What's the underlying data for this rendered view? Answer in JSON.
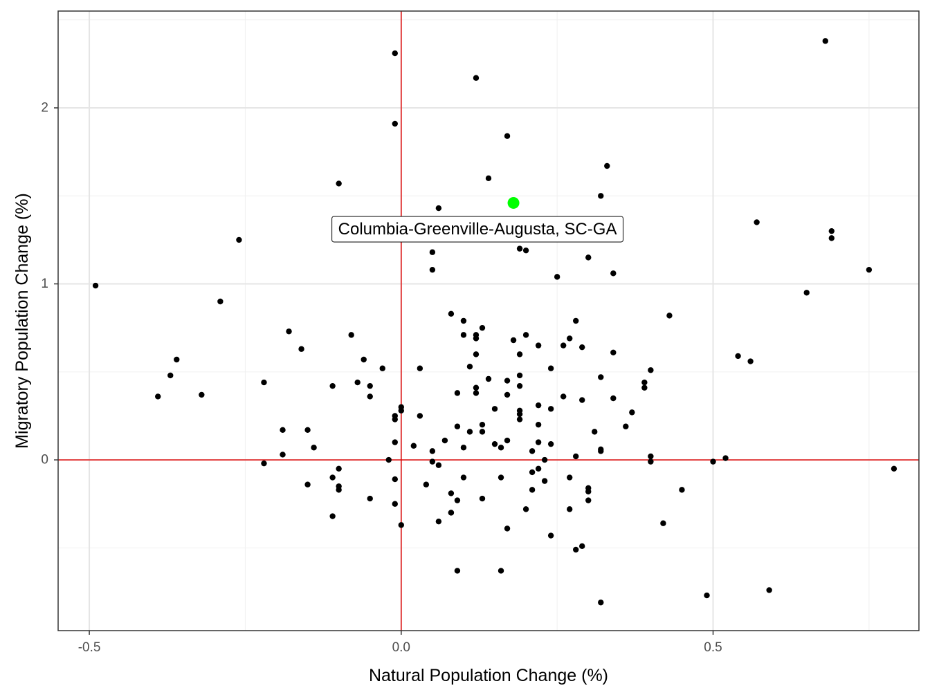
{
  "chart_data": {
    "type": "scatter",
    "xlabel": "Natural Population Change (%)",
    "ylabel": "Migratory Population Change (%)",
    "xlim": [
      -0.55,
      0.83
    ],
    "ylim": [
      -0.97,
      2.55
    ],
    "x_ticks": [
      -0.5,
      0.0,
      0.5
    ],
    "x_tick_labels": [
      "-0.5",
      "0.0",
      "0.5"
    ],
    "y_ticks": [
      0,
      1,
      2
    ],
    "y_tick_labels": [
      "0",
      "1",
      "2"
    ],
    "grid": true,
    "reference_lines": {
      "x": 0,
      "y": 0,
      "color": "#e00000"
    },
    "point_color": "#000000",
    "highlight": {
      "label": "Columbia-Greenville-Augusta, SC-GA",
      "x": 0.18,
      "y": 1.46,
      "color": "#00ff00"
    },
    "points": [
      [
        0.68,
        2.38
      ],
      [
        -0.01,
        2.31
      ],
      [
        0.12,
        2.17
      ],
      [
        -0.01,
        1.91
      ],
      [
        0.17,
        1.84
      ],
      [
        0.33,
        1.67
      ],
      [
        0.14,
        1.6
      ],
      [
        -0.1,
        1.57
      ],
      [
        0.32,
        1.5
      ],
      [
        0.06,
        1.43
      ],
      [
        0.57,
        1.35
      ],
      [
        0.69,
        1.3
      ],
      [
        -0.26,
        1.25
      ],
      [
        0.69,
        1.26
      ],
      [
        0.05,
        1.18
      ],
      [
        0.19,
        1.2
      ],
      [
        0.2,
        1.19
      ],
      [
        0.3,
        1.15
      ],
      [
        0.05,
        1.08
      ],
      [
        0.75,
        1.08
      ],
      [
        0.34,
        1.06
      ],
      [
        0.25,
        1.04
      ],
      [
        -0.49,
        0.99
      ],
      [
        0.65,
        0.95
      ],
      [
        -0.29,
        0.9
      ],
      [
        0.08,
        0.83
      ],
      [
        0.43,
        0.82
      ],
      [
        0.28,
        0.79
      ],
      [
        0.1,
        0.79
      ],
      [
        0.13,
        0.75
      ],
      [
        -0.18,
        0.73
      ],
      [
        0.12,
        0.71
      ],
      [
        0.1,
        0.71
      ],
      [
        -0.08,
        0.71
      ],
      [
        0.2,
        0.71
      ],
      [
        0.12,
        0.69
      ],
      [
        0.27,
        0.69
      ],
      [
        0.18,
        0.68
      ],
      [
        0.26,
        0.65
      ],
      [
        0.22,
        0.65
      ],
      [
        0.29,
        0.64
      ],
      [
        -0.16,
        0.63
      ],
      [
        0.34,
        0.61
      ],
      [
        0.12,
        0.6
      ],
      [
        0.19,
        0.6
      ],
      [
        0.54,
        0.59
      ],
      [
        -0.36,
        0.57
      ],
      [
        -0.06,
        0.57
      ],
      [
        0.56,
        0.56
      ],
      [
        0.11,
        0.53
      ],
      [
        -0.03,
        0.52
      ],
      [
        0.03,
        0.52
      ],
      [
        0.24,
        0.52
      ],
      [
        0.4,
        0.51
      ],
      [
        -0.37,
        0.48
      ],
      [
        0.19,
        0.48
      ],
      [
        0.32,
        0.47
      ],
      [
        0.14,
        0.46
      ],
      [
        0.17,
        0.45
      ],
      [
        -0.22,
        0.44
      ],
      [
        -0.07,
        0.44
      ],
      [
        0.39,
        0.44
      ],
      [
        -0.11,
        0.42
      ],
      [
        -0.05,
        0.42
      ],
      [
        0.19,
        0.42
      ],
      [
        0.12,
        0.41
      ],
      [
        0.39,
        0.41
      ],
      [
        0.09,
        0.38
      ],
      [
        0.12,
        0.38
      ],
      [
        -0.32,
        0.37
      ],
      [
        0.17,
        0.37
      ],
      [
        -0.39,
        0.36
      ],
      [
        -0.05,
        0.36
      ],
      [
        0.26,
        0.36
      ],
      [
        0.34,
        0.35
      ],
      [
        0.29,
        0.34
      ],
      [
        0.22,
        0.31
      ],
      [
        0.0,
        0.3
      ],
      [
        0.15,
        0.29
      ],
      [
        0.24,
        0.29
      ],
      [
        0.0,
        0.28
      ],
      [
        0.19,
        0.28
      ],
      [
        0.37,
        0.27
      ],
      [
        0.19,
        0.26
      ],
      [
        -0.01,
        0.25
      ],
      [
        0.03,
        0.25
      ],
      [
        -0.01,
        0.23
      ],
      [
        0.19,
        0.23
      ],
      [
        0.13,
        0.2
      ],
      [
        0.22,
        0.2
      ],
      [
        0.09,
        0.19
      ],
      [
        0.36,
        0.19
      ],
      [
        -0.19,
        0.17
      ],
      [
        -0.15,
        0.17
      ],
      [
        0.11,
        0.16
      ],
      [
        0.13,
        0.16
      ],
      [
        0.31,
        0.16
      ],
      [
        0.07,
        0.11
      ],
      [
        0.17,
        0.11
      ],
      [
        -0.01,
        0.1
      ],
      [
        0.15,
        0.09
      ],
      [
        0.22,
        0.1
      ],
      [
        0.24,
        0.09
      ],
      [
        0.02,
        0.08
      ],
      [
        -0.14,
        0.07
      ],
      [
        0.1,
        0.07
      ],
      [
        0.16,
        0.07
      ],
      [
        0.05,
        0.05
      ],
      [
        0.32,
        0.05
      ],
      [
        0.21,
        0.05
      ],
      [
        0.32,
        0.06
      ],
      [
        -0.19,
        0.03
      ],
      [
        0.28,
        0.02
      ],
      [
        0.4,
        0.02
      ],
      [
        -0.02,
        0.0
      ],
      [
        0.23,
        0.0
      ],
      [
        0.05,
        -0.01
      ],
      [
        0.4,
        -0.01
      ],
      [
        0.5,
        -0.01
      ],
      [
        0.52,
        0.01
      ],
      [
        -0.22,
        -0.02
      ],
      [
        0.06,
        -0.03
      ],
      [
        -0.1,
        -0.05
      ],
      [
        0.22,
        -0.05
      ],
      [
        0.21,
        -0.07
      ],
      [
        0.79,
        -0.05
      ],
      [
        -0.11,
        -0.1
      ],
      [
        -0.01,
        -0.11
      ],
      [
        0.1,
        -0.1
      ],
      [
        0.16,
        -0.1
      ],
      [
        0.27,
        -0.1
      ],
      [
        0.23,
        -0.12
      ],
      [
        -0.15,
        -0.14
      ],
      [
        0.04,
        -0.14
      ],
      [
        -0.1,
        -0.15
      ],
      [
        -0.1,
        -0.17
      ],
      [
        0.21,
        -0.17
      ],
      [
        0.3,
        -0.16
      ],
      [
        0.45,
        -0.17
      ],
      [
        0.08,
        -0.19
      ],
      [
        0.3,
        -0.18
      ],
      [
        -0.05,
        -0.22
      ],
      [
        0.09,
        -0.23
      ],
      [
        0.13,
        -0.22
      ],
      [
        -0.01,
        -0.25
      ],
      [
        0.3,
        -0.23
      ],
      [
        0.08,
        -0.3
      ],
      [
        0.2,
        -0.28
      ],
      [
        0.27,
        -0.28
      ],
      [
        -0.11,
        -0.32
      ],
      [
        0.06,
        -0.35
      ],
      [
        0.08,
        -0.3
      ],
      [
        0.0,
        -0.37
      ],
      [
        0.42,
        -0.36
      ],
      [
        0.17,
        -0.39
      ],
      [
        0.24,
        -0.43
      ],
      [
        0.28,
        -0.51
      ],
      [
        0.29,
        -0.49
      ],
      [
        0.09,
        -0.63
      ],
      [
        0.16,
        -0.63
      ],
      [
        0.59,
        -0.74
      ],
      [
        0.49,
        -0.77
      ],
      [
        0.32,
        -0.81
      ]
    ]
  }
}
